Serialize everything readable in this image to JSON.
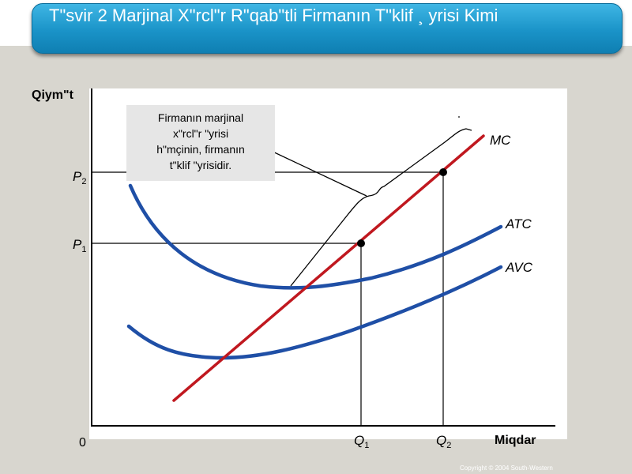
{
  "slide": {
    "title": "Tʺsvir 2 Marjinal Xʺrclʺr Rʺqabʺtli Firmanın Tʺklif ¸ yrisi Kimi",
    "copyright": "Copyright © 2004  South-Western"
  },
  "callout": {
    "lines": [
      "Firmanın marjinal",
      "xʺrclʺr ʺyrisi",
      "hʺmçinin, firmanın",
      "tʺklif ʺyrisidir."
    ]
  },
  "chart_data": {
    "type": "line",
    "ylabel": "Qiymʺt",
    "xlabel": "Miqdar",
    "origin_label": "0",
    "y_ticks": [
      {
        "label": "P",
        "sub": "1"
      },
      {
        "label": "P",
        "sub": "2"
      }
    ],
    "x_ticks": [
      {
        "label": "Q",
        "sub": "1"
      },
      {
        "label": "Q",
        "sub": "2"
      }
    ],
    "series": [
      {
        "name": "MC",
        "color": "#c0181f"
      },
      {
        "name": "ATC",
        "color": "#1f4fa6"
      },
      {
        "name": "AVC",
        "color": "#1f4fa6"
      }
    ],
    "points": [
      {
        "name": "P1-Q1",
        "on": "MC"
      },
      {
        "name": "P2-Q2",
        "on": "MC"
      }
    ]
  }
}
